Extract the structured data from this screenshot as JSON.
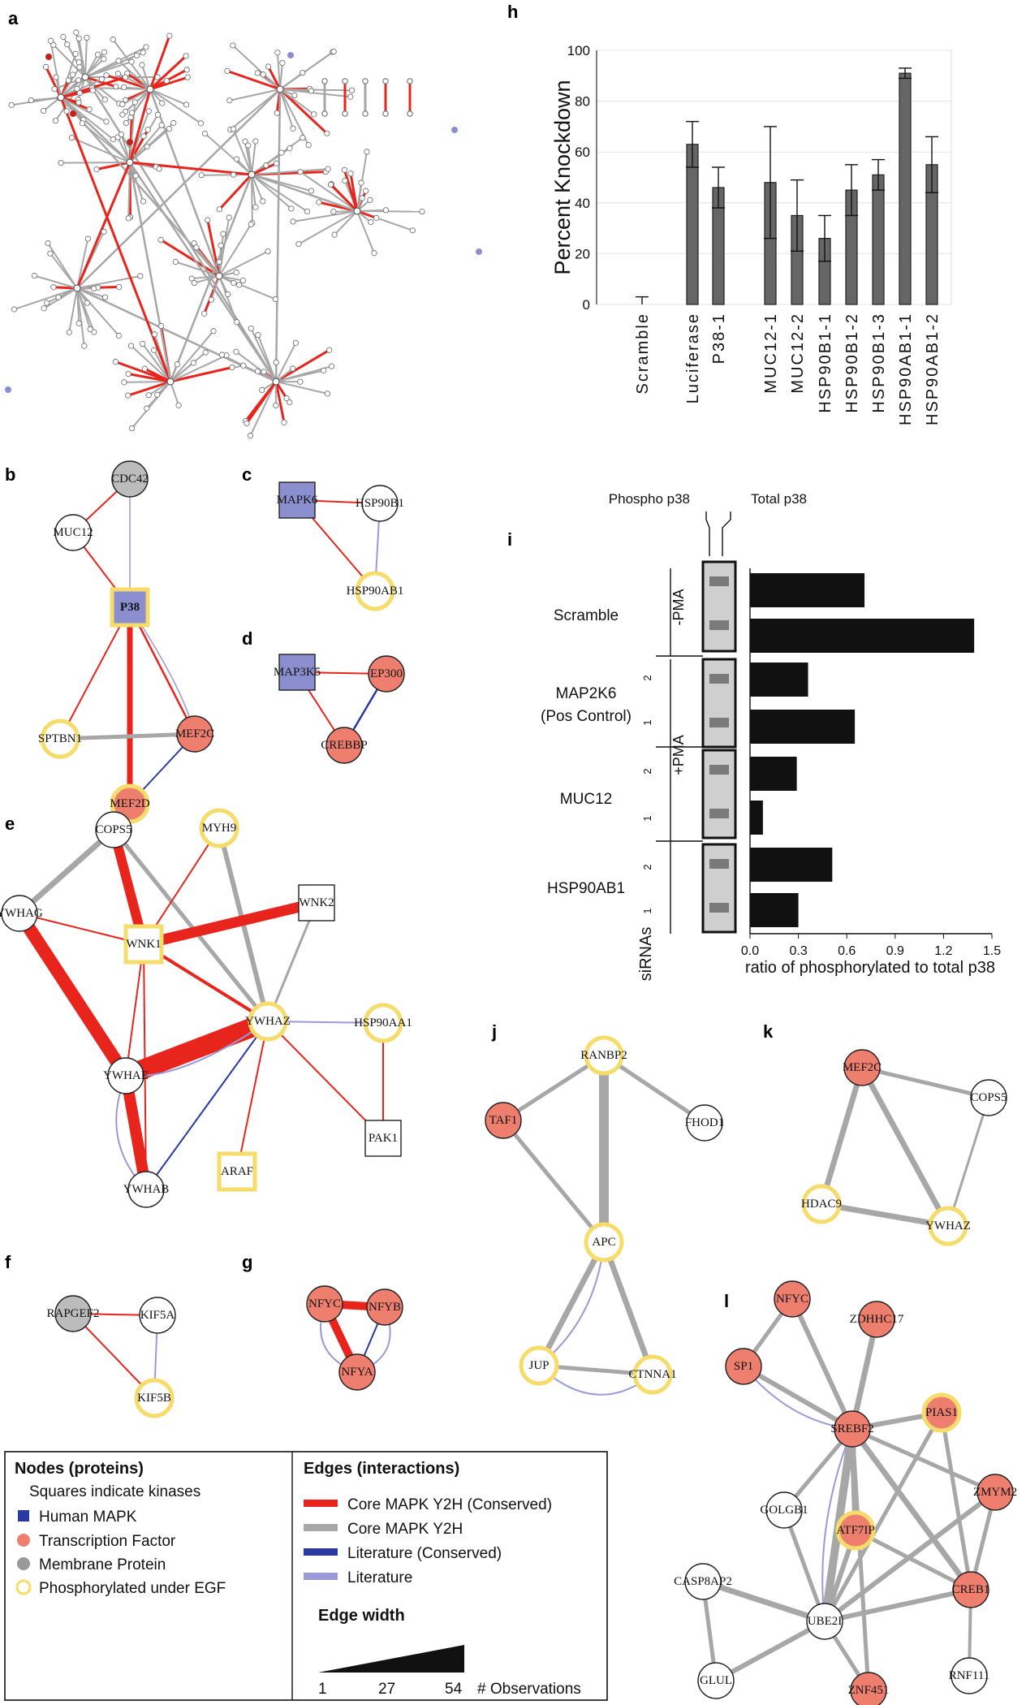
{
  "panel_letters": {
    "a": "a",
    "b": "b",
    "c": "c",
    "d": "d",
    "e": "e",
    "f": "f",
    "g": "g",
    "h": "h",
    "i": "i",
    "j": "j",
    "k": "k",
    "l": "l"
  },
  "colors": {
    "core_conserved": "#e8251c",
    "core_y2h": "#a7a7a7",
    "lit_conserved": "#2b3aa0",
    "literature": "#9a9ad8",
    "human_mapk": "#8c8fcf",
    "transcription_factor": "#ee7f6e",
    "membrane": "#bcbcbc",
    "phospho": "#f6dc6a"
  },
  "networks": {
    "b": {
      "nodes": [
        "CDC42",
        "MUC12",
        "P38",
        "SPTBN1",
        "MEF2C",
        "MEF2D"
      ]
    },
    "c": {
      "nodes": [
        "MAPK6",
        "HSP90B1",
        "HSP90AB1"
      ]
    },
    "d": {
      "nodes": [
        "MAP3K5",
        "EP300",
        "CREBBP"
      ]
    },
    "e": {
      "nodes": [
        "COPS5",
        "MYH9",
        "YWHAG",
        "WNK2",
        "WNK1",
        "YWHAZ",
        "HSP90AA1",
        "YWHAE",
        "PAK1",
        "ARAF",
        "YWHAB"
      ]
    },
    "f": {
      "nodes": [
        "RAPGEF2",
        "KIF5A",
        "KIF5B"
      ]
    },
    "g": {
      "nodes": [
        "NFYC",
        "NFYB",
        "NFYA"
      ]
    },
    "j": {
      "nodes": [
        "RANBP2",
        "TAF1",
        "FHOD1",
        "APC",
        "JUP",
        "CTNNA1"
      ]
    },
    "k": {
      "nodes": [
        "MEF2C",
        "COPS5",
        "HDAC9",
        "YWHAZ"
      ]
    },
    "l": {
      "nodes": [
        "NFYC",
        "ZDHHC17",
        "SP1",
        "SREBF2",
        "PIAS1",
        "ZMYM2",
        "GOLGB1",
        "ATF7IP",
        "CASP8AP2",
        "CREB1",
        "UBE2I",
        "ZNF451",
        "RNF111",
        "GLUL"
      ]
    }
  },
  "legend": {
    "nodes_title": "Nodes (proteins)",
    "squares_note": "Squares indicate kinases",
    "node_items": [
      "Human MAPK",
      "Transcription Factor",
      "Membrane Protein",
      "Phosphorylated under EGF"
    ],
    "edges_title": "Edges (interactions)",
    "edge_items": [
      "Core MAPK Y2H (Conserved)",
      "Core MAPK Y2H",
      "Literature (Conserved)",
      "Literature"
    ],
    "width_title": "Edge width",
    "width_ticks": [
      "1",
      "27",
      "54"
    ],
    "width_unit": "# Observations"
  },
  "chart_data": [
    {
      "panel": "h",
      "type": "bar",
      "ylabel": "Percent Knockdown",
      "ylim": [
        0,
        100
      ],
      "yticks": [
        "0",
        "20",
        "40",
        "60",
        "80",
        "100"
      ],
      "grid": true,
      "categories": [
        "Scramble",
        "Luciferase",
        "P38-1",
        "MUC12-1",
        "MUC12-2",
        "HSP90B1-1",
        "HSP90B1-2",
        "HSP90B1-3",
        "HSP90AB1-1",
        "HSP90AB1-2"
      ],
      "values": [
        0,
        63,
        46,
        48,
        35,
        26,
        45,
        51,
        91,
        55
      ],
      "error": [
        3,
        9,
        8,
        22,
        14,
        9,
        10,
        6,
        2,
        11
      ]
    },
    {
      "panel": "i",
      "type": "bar",
      "orientation": "horizontal",
      "xlabel": "ratio of phosphorylated to total p38",
      "xticks": [
        "0.0",
        "0.3",
        "0.6",
        "0.9",
        "1.2",
        "1.5"
      ],
      "xlim": [
        0,
        1.5
      ],
      "blot_labels": [
        "Phospho p38",
        "Total p38"
      ],
      "treatment_labels": [
        "-PMA",
        "+PMA"
      ],
      "siRNA_label": "siRNAs",
      "groups": [
        "Scramble",
        "MAP2K6\n(Pos Control)",
        "MUC12",
        "HSP90AB1"
      ],
      "group_line1": [
        "Scramble",
        "MAP2K6",
        "MUC12",
        "HSP90AB1"
      ],
      "group_line2": [
        "",
        "(Pos Control)",
        "",
        ""
      ],
      "replicate_labels": [
        "2",
        "1"
      ],
      "values": [
        0.71,
        1.39,
        0.36,
        0.65,
        0.29,
        0.08,
        0.51,
        0.3
      ]
    }
  ]
}
